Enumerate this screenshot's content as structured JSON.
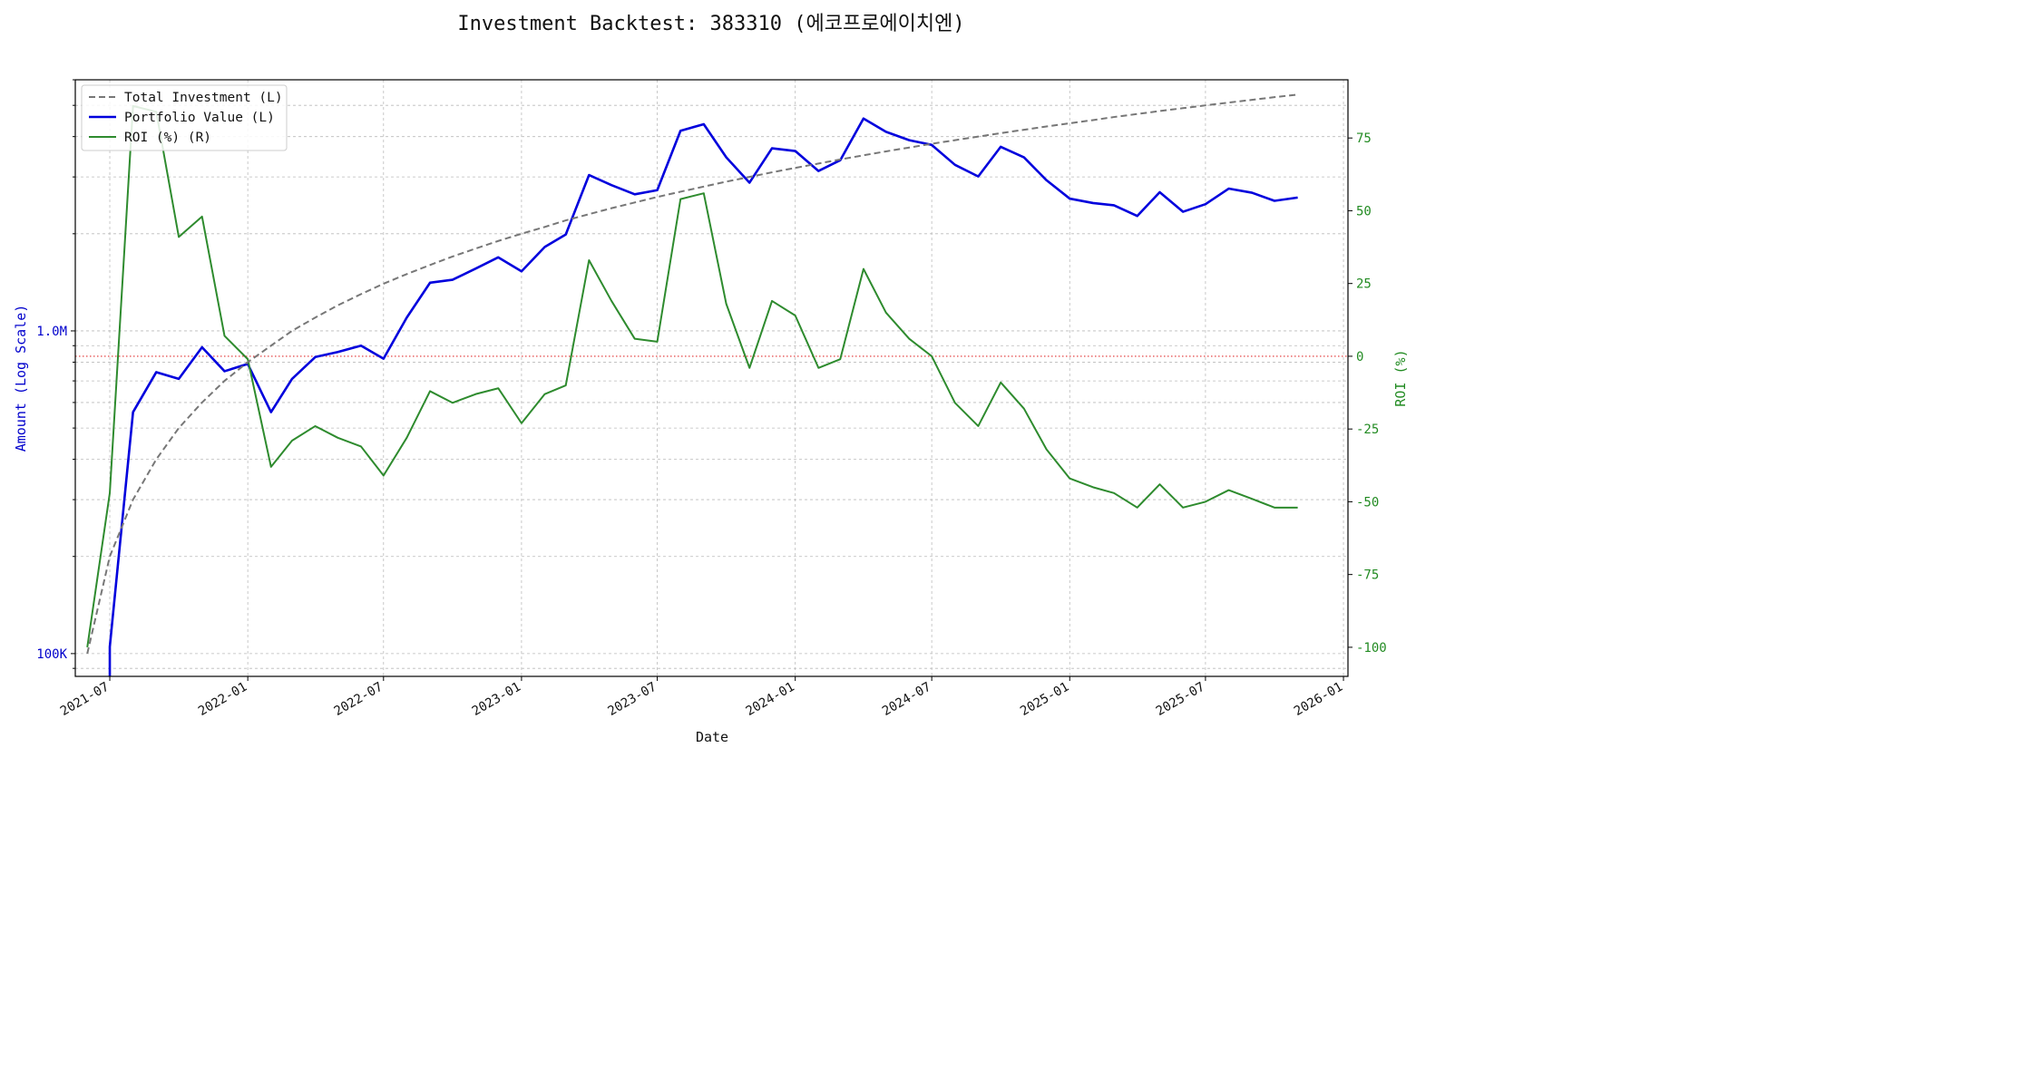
{
  "title": "Investment Backtest: 383310 (에코프로에이치엔)",
  "chart_data": {
    "type": "line",
    "x_label": "Date",
    "y_left_label": "Amount (Log Scale)",
    "y_right_label": "ROI (%)",
    "y_left_scale": "log",
    "y_left_ticks": [
      {
        "value": 100000,
        "label": "100K"
      },
      {
        "value": 1000000,
        "label": "1.0M"
      }
    ],
    "y_left_range": [
      85000,
      6000000
    ],
    "y_right_range": [
      -110,
      95
    ],
    "y_right_ticks": [
      -100,
      -75,
      -50,
      -25,
      0,
      25,
      50,
      75
    ],
    "x_range": [
      "2021-05-16",
      "2026-01-07"
    ],
    "x_ticks": [
      "2021-07",
      "2022-01",
      "2022-07",
      "2023-01",
      "2023-07",
      "2024-01",
      "2024-07",
      "2025-01",
      "2025-07",
      "2026-01"
    ],
    "grid": true,
    "legend_position": "top-left",
    "reference_line": {
      "axis": "right",
      "value": 0,
      "color": "#e03030",
      "style": "dotted"
    },
    "colors": {
      "left_axis": "#0000cc",
      "right_axis": "#228b22",
      "investment": "#777777",
      "portfolio": "#0000dd",
      "roi": "#2e8b2e"
    },
    "series": [
      {
        "name": "Total Investment (L)",
        "axis": "left",
        "style": "dashed",
        "points": [
          [
            "2021-06-01",
            100000
          ],
          [
            "2021-07-01",
            200000
          ],
          [
            "2021-08-01",
            300000
          ],
          [
            "2021-09-01",
            400000
          ],
          [
            "2021-10-01",
            500000
          ],
          [
            "2021-11-01",
            600000
          ],
          [
            "2021-12-01",
            700000
          ],
          [
            "2022-01-01",
            800000
          ],
          [
            "2022-02-01",
            900000
          ],
          [
            "2022-03-01",
            1000000
          ],
          [
            "2022-04-01",
            1100000
          ],
          [
            "2022-05-01",
            1200000
          ],
          [
            "2022-06-01",
            1300000
          ],
          [
            "2022-07-01",
            1400000
          ],
          [
            "2022-08-01",
            1500000
          ],
          [
            "2022-09-01",
            1600000
          ],
          [
            "2022-10-01",
            1700000
          ],
          [
            "2022-11-01",
            1800000
          ],
          [
            "2022-12-01",
            1900000
          ],
          [
            "2023-01-01",
            2000000
          ],
          [
            "2023-02-01",
            2100000
          ],
          [
            "2023-03-01",
            2200000
          ],
          [
            "2023-04-01",
            2300000
          ],
          [
            "2023-05-01",
            2400000
          ],
          [
            "2023-06-01",
            2500000
          ],
          [
            "2023-07-01",
            2600000
          ],
          [
            "2023-08-01",
            2700000
          ],
          [
            "2023-09-01",
            2800000
          ],
          [
            "2023-10-01",
            2900000
          ],
          [
            "2023-11-01",
            3000000
          ],
          [
            "2023-12-01",
            3100000
          ],
          [
            "2024-01-01",
            3200000
          ],
          [
            "2024-02-01",
            3300000
          ],
          [
            "2024-03-01",
            3400000
          ],
          [
            "2024-04-01",
            3500000
          ],
          [
            "2024-05-01",
            3600000
          ],
          [
            "2024-06-01",
            3700000
          ],
          [
            "2024-07-01",
            3800000
          ],
          [
            "2024-08-01",
            3900000
          ],
          [
            "2024-09-01",
            4000000
          ],
          [
            "2024-10-01",
            4100000
          ],
          [
            "2024-11-01",
            4200000
          ],
          [
            "2024-12-01",
            4300000
          ],
          [
            "2025-01-01",
            4400000
          ],
          [
            "2025-02-01",
            4500000
          ],
          [
            "2025-03-01",
            4600000
          ],
          [
            "2025-04-01",
            4700000
          ],
          [
            "2025-05-01",
            4800000
          ],
          [
            "2025-06-01",
            4900000
          ],
          [
            "2025-07-01",
            5000000
          ],
          [
            "2025-08-01",
            5100000
          ],
          [
            "2025-09-01",
            5200000
          ],
          [
            "2025-10-01",
            5300000
          ],
          [
            "2025-11-01",
            5400000
          ]
        ]
      },
      {
        "name": "Portfolio Value (L)",
        "axis": "left",
        "style": "solid",
        "points": [
          [
            "2021-07-01",
            105000
          ],
          [
            "2021-07-01",
            82000
          ],
          [
            "2021-07-01",
            105000
          ],
          [
            "2021-08-01",
            560000
          ],
          [
            "2021-09-01",
            745000
          ],
          [
            "2021-10-01",
            710000
          ],
          [
            "2021-11-01",
            890000
          ],
          [
            "2021-12-01",
            750000
          ],
          [
            "2022-01-01",
            790000
          ],
          [
            "2022-02-01",
            560000
          ],
          [
            "2022-03-01",
            710000
          ],
          [
            "2022-04-01",
            830000
          ],
          [
            "2022-05-01",
            860000
          ],
          [
            "2022-06-01",
            900000
          ],
          [
            "2022-07-01",
            820000
          ],
          [
            "2022-08-01",
            1100000
          ],
          [
            "2022-09-01",
            1410000
          ],
          [
            "2022-10-01",
            1440000
          ],
          [
            "2022-11-01",
            1560000
          ],
          [
            "2022-12-01",
            1690000
          ],
          [
            "2023-01-01",
            1530000
          ],
          [
            "2023-02-01",
            1820000
          ],
          [
            "2023-03-01",
            1990000
          ],
          [
            "2023-04-01",
            3040000
          ],
          [
            "2023-05-01",
            2830000
          ],
          [
            "2023-06-01",
            2650000
          ],
          [
            "2023-07-01",
            2730000
          ],
          [
            "2023-08-01",
            4170000
          ],
          [
            "2023-09-01",
            4370000
          ],
          [
            "2023-10-01",
            3450000
          ],
          [
            "2023-11-01",
            2880000
          ],
          [
            "2023-12-01",
            3680000
          ],
          [
            "2024-01-01",
            3610000
          ],
          [
            "2024-02-01",
            3130000
          ],
          [
            "2024-03-01",
            3380000
          ],
          [
            "2024-04-01",
            4550000
          ],
          [
            "2024-05-01",
            4140000
          ],
          [
            "2024-06-01",
            3900000
          ],
          [
            "2024-07-01",
            3770000
          ],
          [
            "2024-08-01",
            3270000
          ],
          [
            "2024-09-01",
            3010000
          ],
          [
            "2024-10-01",
            3720000
          ],
          [
            "2024-11-01",
            3450000
          ],
          [
            "2024-12-01",
            2930000
          ],
          [
            "2025-01-01",
            2570000
          ],
          [
            "2025-02-01",
            2490000
          ],
          [
            "2025-03-01",
            2450000
          ],
          [
            "2025-04-01",
            2270000
          ],
          [
            "2025-05-01",
            2690000
          ],
          [
            "2025-06-01",
            2340000
          ],
          [
            "2025-07-01",
            2470000
          ],
          [
            "2025-08-01",
            2760000
          ],
          [
            "2025-09-01",
            2680000
          ],
          [
            "2025-10-01",
            2530000
          ],
          [
            "2025-11-01",
            2590000
          ]
        ]
      },
      {
        "name": "ROI (%) (R)",
        "axis": "right",
        "style": "solid",
        "points": [
          [
            "2021-06-01",
            -100
          ],
          [
            "2021-07-01",
            -47
          ],
          [
            "2021-08-01",
            86
          ],
          [
            "2021-09-01",
            84
          ],
          [
            "2021-10-01",
            41
          ],
          [
            "2021-11-01",
            48
          ],
          [
            "2021-12-01",
            7
          ],
          [
            "2022-01-01",
            -1
          ],
          [
            "2022-02-01",
            -38
          ],
          [
            "2022-03-01",
            -29
          ],
          [
            "2022-04-01",
            -24
          ],
          [
            "2022-05-01",
            -28
          ],
          [
            "2022-06-01",
            -31
          ],
          [
            "2022-07-01",
            -41
          ],
          [
            "2022-08-01",
            -28
          ],
          [
            "2022-09-01",
            -12
          ],
          [
            "2022-10-01",
            -16
          ],
          [
            "2022-11-01",
            -13
          ],
          [
            "2022-12-01",
            -11
          ],
          [
            "2023-01-01",
            -23
          ],
          [
            "2023-02-01",
            -13
          ],
          [
            "2023-03-01",
            -10
          ],
          [
            "2023-04-01",
            33
          ],
          [
            "2023-05-01",
            19
          ],
          [
            "2023-06-01",
            6
          ],
          [
            "2023-07-01",
            5
          ],
          [
            "2023-08-01",
            54
          ],
          [
            "2023-09-01",
            56
          ],
          [
            "2023-10-01",
            18
          ],
          [
            "2023-11-01",
            -4
          ],
          [
            "2023-12-01",
            19
          ],
          [
            "2024-01-01",
            14
          ],
          [
            "2024-02-01",
            -4
          ],
          [
            "2024-03-01",
            -1
          ],
          [
            "2024-04-01",
            30
          ],
          [
            "2024-05-01",
            15
          ],
          [
            "2024-06-01",
            6
          ],
          [
            "2024-07-01",
            0
          ],
          [
            "2024-08-01",
            -16
          ],
          [
            "2024-09-01",
            -24
          ],
          [
            "2024-10-01",
            -9
          ],
          [
            "2024-11-01",
            -18
          ],
          [
            "2024-12-01",
            -32
          ],
          [
            "2025-01-01",
            -42
          ],
          [
            "2025-02-01",
            -45
          ],
          [
            "2025-03-01",
            -47
          ],
          [
            "2025-04-01",
            -52
          ],
          [
            "2025-05-01",
            -44
          ],
          [
            "2025-06-01",
            -52
          ],
          [
            "2025-07-01",
            -50
          ],
          [
            "2025-08-01",
            -46
          ],
          [
            "2025-09-01",
            -49
          ],
          [
            "2025-10-01",
            -52
          ],
          [
            "2025-11-01",
            -52
          ]
        ]
      }
    ]
  }
}
